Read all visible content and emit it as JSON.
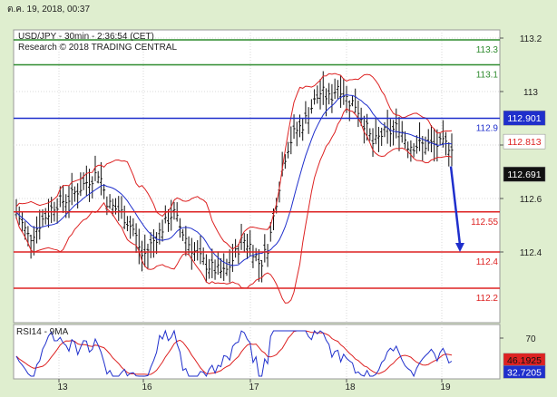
{
  "header": {
    "timestamp": "ต.ค. 19, 2018, 00:37"
  },
  "chart_data": [
    {
      "type": "line",
      "title": "USD/JPY - 30min - 2:36:54 (CET)",
      "subtitle": "Research © 2018 TRADING CENTRAL",
      "y_ticks": [
        112.4,
        112.6,
        112.8,
        113.0,
        113.2
      ],
      "y_tick_labels": [
        "112.4",
        "112.6",
        "112.8",
        "113",
        "113.2"
      ],
      "ylim": [
        112.22,
        113.25
      ],
      "x_ticks": [
        "13",
        "16",
        "17",
        "18",
        "19"
      ],
      "grid": true,
      "levels": [
        {
          "name": "113.3",
          "value": 113.3,
          "color": "#2e8b2e"
        },
        {
          "name": "113.1",
          "value": 113.1,
          "color": "#2e8b2e"
        },
        {
          "name": "112.9",
          "value": 112.9,
          "color": "#1f2fcc"
        },
        {
          "name": "112.55",
          "value": 112.55,
          "color": "#dd2222"
        },
        {
          "name": "112.4",
          "value": 112.4,
          "color": "#dd2222"
        },
        {
          "name": "112.2",
          "value": 112.2,
          "color": "#dd2222"
        }
      ],
      "price_markers": [
        {
          "label": "112.901",
          "value": 112.901,
          "text_color": "#ffffff",
          "bg": "#1f2fcc"
        },
        {
          "label": "112.813",
          "value": 112.813,
          "text_color": "#dd2222",
          "bg": "#ffffff"
        },
        {
          "label": "112.691",
          "value": 112.691,
          "text_color": "#ffffff",
          "bg": "#111111"
        }
      ],
      "price_anchors": [
        [
          0,
          112.55
        ],
        [
          0.03,
          112.45
        ],
        [
          0.06,
          112.52
        ],
        [
          0.09,
          112.58
        ],
        [
          0.12,
          112.6
        ],
        [
          0.16,
          112.66
        ],
        [
          0.19,
          112.7
        ],
        [
          0.21,
          112.58
        ],
        [
          0.24,
          112.55
        ],
        [
          0.27,
          112.48
        ],
        [
          0.29,
          112.38
        ],
        [
          0.31,
          112.43
        ],
        [
          0.34,
          112.5
        ],
        [
          0.36,
          112.55
        ],
        [
          0.38,
          112.48
        ],
        [
          0.4,
          112.42
        ],
        [
          0.43,
          112.36
        ],
        [
          0.46,
          112.33
        ],
        [
          0.48,
          112.32
        ],
        [
          0.5,
          112.38
        ],
        [
          0.52,
          112.45
        ],
        [
          0.54,
          112.42
        ],
        [
          0.56,
          112.35
        ],
        [
          0.58,
          112.43
        ],
        [
          0.6,
          112.62
        ],
        [
          0.62,
          112.78
        ],
        [
          0.64,
          112.85
        ],
        [
          0.66,
          112.88
        ],
        [
          0.68,
          112.95
        ],
        [
          0.7,
          113.0
        ],
        [
          0.72,
          112.97
        ],
        [
          0.74,
          113.03
        ],
        [
          0.76,
          112.97
        ],
        [
          0.78,
          112.95
        ],
        [
          0.8,
          112.88
        ],
        [
          0.82,
          112.8
        ],
        [
          0.84,
          112.84
        ],
        [
          0.86,
          112.85
        ],
        [
          0.88,
          112.87
        ],
        [
          0.9,
          112.8
        ]
      ],
      "forecast_arrow": {
        "from": 112.72,
        "to": 112.4,
        "color": "#1f2fcc"
      },
      "series": [
        {
          "name": "",
          "color": "#111111"
        },
        {
          "name": "",
          "color": "#dd2222"
        },
        {
          "name": "",
          "color": "#1f2fcc"
        }
      ]
    },
    {
      "type": "line",
      "title": "RSI14 - 9MA",
      "y_ticks": [
        70
      ],
      "y_tick_labels": [
        "70"
      ],
      "ylim": [
        25,
        85
      ],
      "price_markers": [
        {
          "label": "46.1925",
          "value": 46.1925,
          "text_color": "#111111",
          "bg": "#dd2222"
        },
        {
          "label": "32.7205",
          "value": 32.7205,
          "text_color": "#ffffff",
          "bg": "#1f2fcc"
        }
      ],
      "series": [
        {
          "name": "RSI14",
          "color": "#1f2fcc"
        },
        {
          "name": "9MA",
          "color": "#dd2222"
        }
      ]
    }
  ]
}
